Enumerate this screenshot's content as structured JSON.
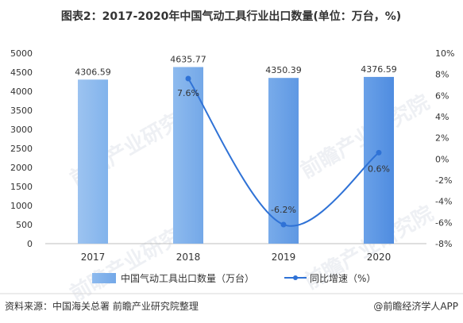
{
  "chart_data": {
    "type": "bar+line",
    "title": "图表2：2017-2020年中国气动工具行业出口数量(单位：万台，%)",
    "categories": [
      "2017",
      "2018",
      "2019",
      "2020"
    ],
    "bar_series": {
      "name": "中国气动工具出口数量（万台）",
      "values": [
        4306.59,
        4635.77,
        4350.39,
        4376.59
      ],
      "labels": [
        "4306.59",
        "4635.77",
        "4350.39",
        "4376.59"
      ],
      "color": "#7aaee8"
    },
    "line_series": {
      "name": "同比增速（%）",
      "values": [
        null,
        7.6,
        -6.2,
        0.6
      ],
      "labels": [
        "",
        "7.6%",
        "-6.2%",
        "0.6%"
      ],
      "color": "#2f72d6"
    },
    "y_left": {
      "min": 0,
      "max": 5000,
      "step": 500,
      "ticks": [
        "0",
        "500",
        "1000",
        "1500",
        "2000",
        "2500",
        "3000",
        "3500",
        "4000",
        "4500",
        "5000"
      ]
    },
    "y_right": {
      "min": -8,
      "max": 10,
      "step": 2,
      "ticks": [
        "-8%",
        "-6%",
        "-4%",
        "-2%",
        "0%",
        "2%",
        "4%",
        "6%",
        "8%",
        "10%"
      ]
    },
    "legend_position": "bottom-center",
    "grid": false
  },
  "footer": {
    "source": "资料来源：中国海关总署 前瞻产业研究院整理",
    "brand": "@前瞻经济学人APP"
  },
  "watermark": "前瞻产业研究院"
}
